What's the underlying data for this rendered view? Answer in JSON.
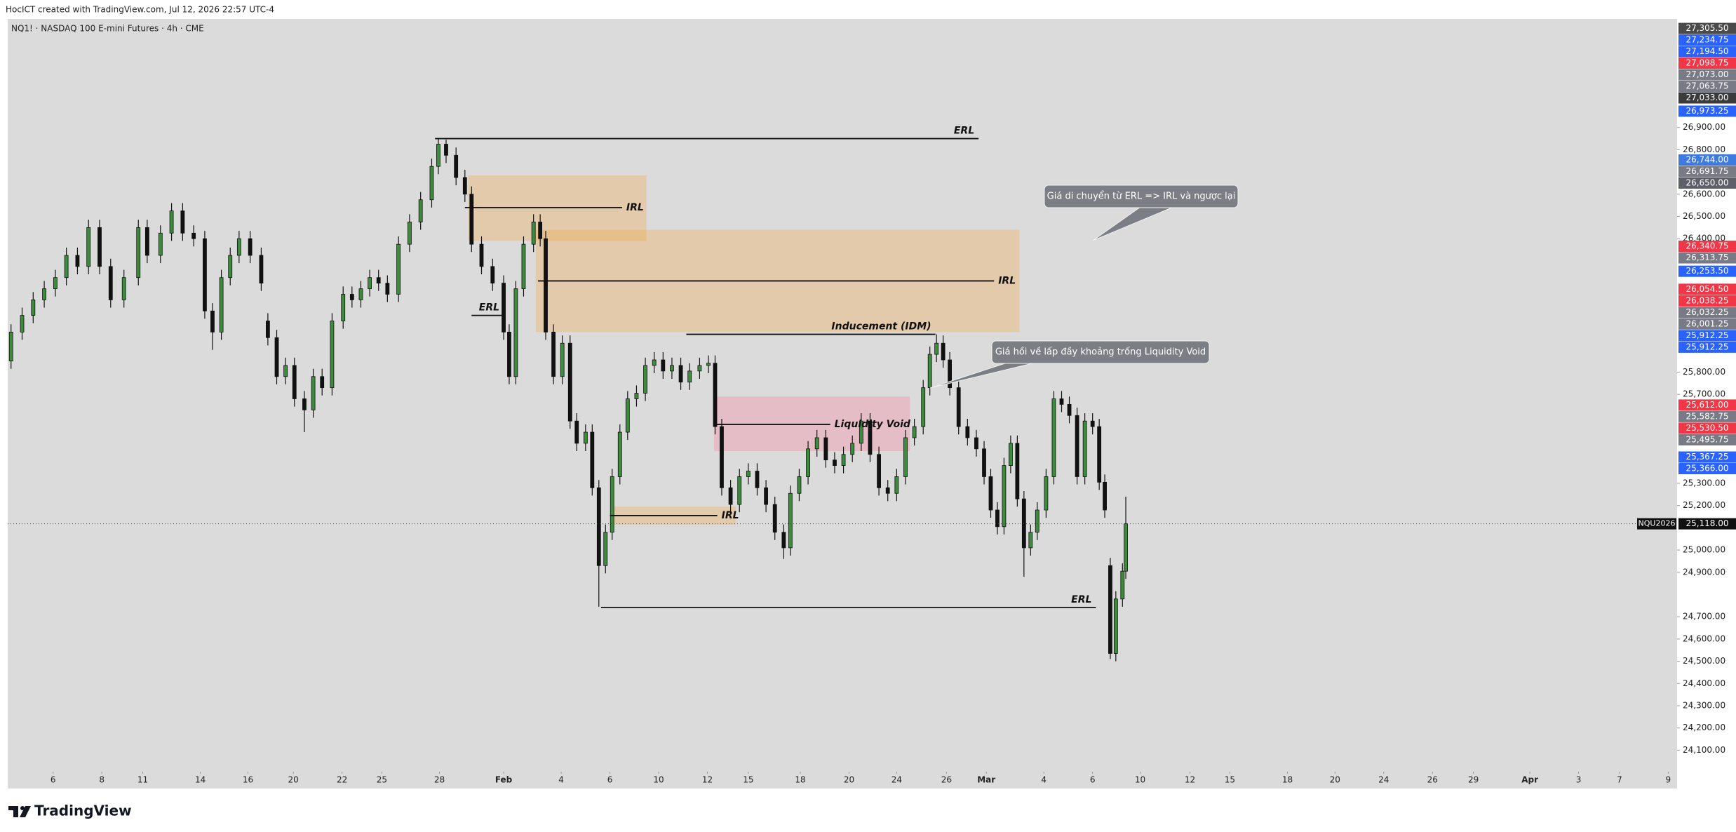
{
  "header": {
    "caption": "HocICT created with TradingView.com, Jul 12, 2026 22:57 UTC-4",
    "symbol_line": "NQ1! · NASDAQ 100 E-mini Futures · 4h · CME"
  },
  "footer": {
    "brand": "TradingView"
  },
  "chart_data": {
    "type": "candlestick",
    "x": [
      0.75,
      3.25,
      5.75,
      8.25,
      10.75,
      13.25,
      15.75,
      18.25,
      20.75,
      23.25,
      26.25,
      29.5,
      31.5,
      34.5,
      37,
      39.5,
      42,
      44.5,
      46.25,
      48.25,
      50.25,
      52.25,
      54.75,
      57.25,
      58.75,
      60.75,
      62.75,
      64.75,
      67,
      69,
      71,
      73.25,
      75.75,
      77.75,
      79.75,
      81.75,
      83.75,
      85.75,
      88.25,
      90.75,
      93.25,
      95.75,
      97.25,
      99,
      101.25,
      103.25,
      104.75,
      107,
      109.5,
      112,
      113.25,
      114.75,
      116.5,
      118.75,
      120.25,
      121.5,
      123.25,
      125.25,
      127,
      128.5,
      130.5,
      132,
      133.5,
      135,
      136.5,
      138.25,
      140,
      142,
      144,
      146,
      148,
      150,
      152,
      154,
      156.25,
      158.25,
      159.75,
      161.25,
      163.25,
      165.25,
      167.25,
      169.25,
      171.25,
      173.25,
      175.25,
      176.75,
      178.75,
      180.75,
      182.75,
      184.75,
      186.75,
      188.75,
      190.75,
      192.75,
      194.75,
      196.75,
      198.75,
      200.75,
      202.75,
      204.75,
      206.75,
      208.25,
      209.75,
      211.25,
      212.75,
      214.75,
      216.75,
      218.75,
      220.5,
      222,
      223.5,
      225,
      226.5,
      228,
      229.5,
      231,
      232.5,
      234.5,
      236.25,
      238,
      239.75,
      241.5,
      243.25,
      245,
      246.5,
      247.75,
      249,
      250.25,
      251.75,
      252.5
    ],
    "open": [
      25850,
      25980,
      26055,
      26125,
      26175,
      26225,
      26325,
      26275,
      26450,
      26275,
      26125,
      26225,
      26450,
      26325,
      26425,
      26525,
      26425,
      26400,
      26075,
      25980,
      26225,
      26325,
      26400,
      26325,
      26030,
      25955,
      25780,
      25830,
      25680,
      25630,
      25780,
      25730,
      26030,
      26150,
      26125,
      26175,
      26225,
      26200,
      26150,
      26375,
      26475,
      26575,
      26725,
      26825,
      26775,
      26675,
      26600,
      26375,
      26275,
      26200,
      25980,
      25780,
      26175,
      26375,
      26475,
      26400,
      25980,
      25780,
      25930,
      25580,
      25480,
      25530,
      25280,
      24930,
      25080,
      25330,
      25530,
      25680,
      25705,
      25830,
      25855,
      25805,
      25830,
      25755,
      25805,
      25830,
      25840,
      25555,
      25280,
      25205,
      25330,
      25355,
      25280,
      25205,
      25080,
      25010,
      25255,
      25330,
      25455,
      25505,
      25405,
      25380,
      25430,
      25480,
      25580,
      25430,
      25280,
      25255,
      25330,
      25505,
      25555,
      25730,
      25880,
      25930,
      25855,
      25730,
      25555,
      25505,
      25455,
      25330,
      25180,
      25105,
      25380,
      25480,
      25230,
      25010,
      25080,
      25180,
      25330,
      25680,
      25655,
      25605,
      25330,
      25580,
      25555,
      25305,
      24930,
      24535,
      24780,
      24905
    ],
    "high": [
      26015,
      26090,
      26160,
      26210,
      26260,
      26360,
      26360,
      26485,
      26485,
      26310,
      26260,
      26485,
      26485,
      26460,
      26560,
      26560,
      26460,
      26435,
      26110,
      26260,
      26360,
      26435,
      26435,
      26360,
      26065,
      25990,
      25865,
      25865,
      25715,
      25815,
      25815,
      26065,
      26185,
      26185,
      26210,
      26260,
      26260,
      26235,
      26410,
      26510,
      26610,
      26760,
      26850,
      26845,
      26810,
      26710,
      26635,
      26410,
      26310,
      26235,
      26015,
      26210,
      26410,
      26510,
      26510,
      26435,
      26015,
      25965,
      25965,
      25615,
      25565,
      25565,
      25315,
      25115,
      25365,
      25565,
      25715,
      25740,
      25865,
      25890,
      25890,
      25865,
      25865,
      25840,
      25865,
      25875,
      25875,
      25590,
      25315,
      25365,
      25390,
      25390,
      25315,
      25240,
      25115,
      25290,
      25365,
      25490,
      25540,
      25540,
      25440,
      25465,
      25515,
      25615,
      25615,
      25465,
      25315,
      25365,
      25540,
      25590,
      25765,
      25915,
      25970,
      25965,
      25890,
      25765,
      25590,
      25540,
      25490,
      25365,
      25215,
      25415,
      25515,
      25515,
      25265,
      25115,
      25215,
      25365,
      25715,
      25715,
      25690,
      25640,
      25615,
      25615,
      25590,
      25340,
      24965,
      24815,
      24940,
      25240
    ],
    "low": [
      25815,
      25945,
      26020,
      26090,
      26140,
      26190,
      26240,
      26240,
      26240,
      26090,
      26090,
      26190,
      26290,
      26290,
      26390,
      26390,
      26365,
      26040,
      25900,
      25945,
      26190,
      26290,
      26290,
      26165,
      25920,
      25745,
      25745,
      25645,
      25530,
      25595,
      25695,
      25695,
      25995,
      26090,
      26090,
      26140,
      26165,
      26115,
      26115,
      26340,
      26440,
      26540,
      26690,
      26740,
      26640,
      26565,
      26340,
      26240,
      26165,
      25945,
      25745,
      25745,
      26140,
      26340,
      26365,
      25945,
      25745,
      25745,
      25545,
      25445,
      25445,
      25245,
      24745,
      24895,
      25045,
      25295,
      25495,
      25645,
      25670,
      25795,
      25770,
      25770,
      25720,
      25720,
      25770,
      25795,
      25520,
      25245,
      25170,
      25170,
      25295,
      25245,
      25170,
      25045,
      24960,
      24975,
      25220,
      25295,
      25420,
      25370,
      25345,
      25345,
      25395,
      25445,
      25395,
      25245,
      25220,
      25220,
      25295,
      25470,
      25520,
      25695,
      25845,
      25820,
      25695,
      25520,
      25470,
      25420,
      25295,
      25145,
      25070,
      25070,
      25345,
      25195,
      24880,
      24975,
      25045,
      25145,
      25295,
      25620,
      25570,
      25295,
      25295,
      25520,
      25270,
      25145,
      24510,
      24500,
      24745,
      24870
    ],
    "close": [
      25980,
      26055,
      26125,
      26175,
      26225,
      26325,
      26275,
      26450,
      26275,
      26125,
      26225,
      26450,
      26325,
      26425,
      26525,
      26425,
      26400,
      26075,
      25980,
      26225,
      26325,
      26400,
      26325,
      26200,
      25955,
      25780,
      25830,
      25680,
      25630,
      25780,
      25730,
      26030,
      26150,
      26125,
      26175,
      26225,
      26200,
      26150,
      26375,
      26475,
      26575,
      26725,
      26825,
      26775,
      26675,
      26600,
      26375,
      26275,
      26200,
      25980,
      25780,
      26175,
      26375,
      26475,
      26400,
      25980,
      25780,
      25930,
      25580,
      25480,
      25530,
      25280,
      24930,
      25080,
      25330,
      25530,
      25680,
      25705,
      25830,
      25855,
      25805,
      25830,
      25755,
      25805,
      25830,
      25840,
      25555,
      25280,
      25205,
      25330,
      25355,
      25280,
      25205,
      25080,
      25010,
      25255,
      25330,
      25455,
      25505,
      25405,
      25380,
      25430,
      25480,
      25580,
      25430,
      25280,
      25255,
      25330,
      25505,
      25555,
      25730,
      25880,
      25930,
      25855,
      25730,
      25555,
      25505,
      25455,
      25330,
      25180,
      25105,
      25380,
      25480,
      25230,
      25010,
      25080,
      25180,
      25330,
      25680,
      25655,
      25605,
      25330,
      25580,
      25555,
      25305,
      25180,
      24535,
      24780,
      24905,
      25118
    ],
    "up_color": "#3d8b3d",
    "down_color": "#111111",
    "xlim": [
      0,
      377
    ],
    "xticks": [
      {
        "value": 10.25,
        "label": "6"
      },
      {
        "value": 21.25,
        "label": "8"
      },
      {
        "value": 30.5,
        "label": "11"
      },
      {
        "value": 43.5,
        "label": "14"
      },
      {
        "value": 54.25,
        "label": "16"
      },
      {
        "value": 64.5,
        "label": "20"
      },
      {
        "value": 75.5,
        "label": "22"
      },
      {
        "value": 84.5,
        "label": "25"
      },
      {
        "value": 97.5,
        "label": "28"
      },
      {
        "value": 112,
        "label": "Feb"
      },
      {
        "value": 125,
        "label": "4"
      },
      {
        "value": 136,
        "label": "6"
      },
      {
        "value": 147,
        "label": "10"
      },
      {
        "value": 158,
        "label": "12"
      },
      {
        "value": 167.25,
        "label": "15"
      },
      {
        "value": 179,
        "label": "18"
      },
      {
        "value": 190,
        "label": "20"
      },
      {
        "value": 200.75,
        "label": "24"
      },
      {
        "value": 212,
        "label": "26"
      },
      {
        "value": 221,
        "label": "Mar"
      },
      {
        "value": 234,
        "label": "4"
      },
      {
        "value": 245,
        "label": "6"
      },
      {
        "value": 255.75,
        "label": "10"
      },
      {
        "value": 267,
        "label": "12"
      },
      {
        "value": 276,
        "label": "15"
      },
      {
        "value": 289,
        "label": "18"
      },
      {
        "value": 299.75,
        "label": "20"
      },
      {
        "value": 310.75,
        "label": "24"
      },
      {
        "value": 321.75,
        "label": "26"
      },
      {
        "value": 331,
        "label": "29"
      },
      {
        "value": 343.75,
        "label": "Apr"
      },
      {
        "value": 354.75,
        "label": "3"
      },
      {
        "value": 364,
        "label": "7"
      },
      {
        "value": 375,
        "label": "9"
      }
    ],
    "ylim": [
      24035,
      27388
    ],
    "yticks": [
      {
        "value": 26900,
        "label": "26,900.00"
      },
      {
        "value": 26800,
        "label": "26,800.00"
      },
      {
        "value": 26600,
        "label": "26,600.00"
      },
      {
        "value": 26500,
        "label": "26,500.00"
      },
      {
        "value": 26400,
        "label": "26,400.00"
      },
      {
        "value": 25800,
        "label": "25,800.00"
      },
      {
        "value": 25700,
        "label": "25,700.00"
      },
      {
        "value": 25300,
        "label": "25,300.00"
      },
      {
        "value": 25200,
        "label": "25,200.00"
      },
      {
        "value": 25000,
        "label": "25,000.00"
      },
      {
        "value": 24900,
        "label": "24,900.00"
      },
      {
        "value": 24700,
        "label": "24,700.00"
      },
      {
        "value": 24600,
        "label": "24,600.00"
      },
      {
        "value": 24500,
        "label": "24,500.00"
      },
      {
        "value": 24400,
        "label": "24,400.00"
      },
      {
        "value": 24300,
        "label": "24,300.00"
      },
      {
        "value": 24200,
        "label": "24,200.00"
      },
      {
        "value": 24100,
        "label": "24,100.00"
      }
    ],
    "grid": false,
    "last_price": {
      "value": 25118,
      "label": "25,118.00",
      "symbol": "NQU2026"
    },
    "price_labels": [
      {
        "value": 27305.5,
        "label": "27,305.50",
        "color": "#4a4a4a"
      },
      {
        "value": 27234.75,
        "label": "27,234.75",
        "color": "#2962ff"
      },
      {
        "value": 27194.5,
        "label": "27,194.50",
        "color": "#2962ff"
      },
      {
        "value": 27098.75,
        "label": "27,098.75",
        "color": "#f23645"
      },
      {
        "value": 27073,
        "label": "27,073.00",
        "color": "#787b86"
      },
      {
        "value": 27063.75,
        "label": "27,063.75",
        "color": "#787b86"
      },
      {
        "value": 27033,
        "label": "27,033.00",
        "color": "#3b3b3b"
      },
      {
        "value": 26973.25,
        "label": "26,973.25",
        "color": "#2962ff"
      },
      {
        "value": 26744,
        "label": "26,744.00",
        "color": "#3d7be0"
      },
      {
        "value": 26691.75,
        "label": "26,691.75",
        "color": "#787b86"
      },
      {
        "value": 26650,
        "label": "26,650.00",
        "color": "#5d6068"
      },
      {
        "value": 26340.75,
        "label": "26,340.75",
        "color": "#f23645"
      },
      {
        "value": 26313.75,
        "label": "26,313.75",
        "color": "#787b86"
      },
      {
        "value": 26253.5,
        "label": "26,253.50",
        "color": "#2962ff"
      },
      {
        "value": 26054.5,
        "label": "26,054.50",
        "color": "#f23645"
      },
      {
        "value": 26038.25,
        "label": "26,038.25",
        "color": "#f23645"
      },
      {
        "value": 26032.25,
        "label": "26,032.25",
        "color": "#787b86"
      },
      {
        "value": 26001.25,
        "label": "26,001.25",
        "color": "#787b86"
      },
      {
        "value": 25912.25,
        "label": "25,912.25",
        "color": "#2962ff"
      },
      {
        "value": 25912.25,
        "label": "25,912.25",
        "color": "#2962ff"
      },
      {
        "value": 25612,
        "label": "25,612.00",
        "color": "#f23645"
      },
      {
        "value": 25582.75,
        "label": "25,582.75",
        "color": "#787b86"
      },
      {
        "value": 25530.5,
        "label": "25,530.50",
        "color": "#f23645"
      },
      {
        "value": 25495.75,
        "label": "25,495.75",
        "color": "#787b86"
      },
      {
        "value": 25367.25,
        "label": "25,367.25",
        "color": "#2962ff"
      },
      {
        "value": 25366,
        "label": "25,366.00",
        "color": "#2962ff"
      }
    ],
    "zones": [
      {
        "x": [
          104,
          144.25
        ],
        "y": [
          26390,
          26685
        ],
        "color": "rgba(242,168,72,0.32)"
      },
      {
        "x": [
          119.25,
          228.5
        ],
        "y": [
          25980,
          26440
        ],
        "color": "rgba(242,168,72,0.32)"
      },
      {
        "x": [
          159.5,
          203.75
        ],
        "y": [
          25445,
          25690
        ],
        "color": "rgba(244,140,165,0.38)"
      },
      {
        "x": [
          136,
          164.5
        ],
        "y": [
          25115,
          25195
        ],
        "color": "rgba(242,168,72,0.32)"
      }
    ],
    "levels": [
      {
        "label": "ERL",
        "x": [
          96.5,
          219.25
        ],
        "value": 26850,
        "label_pos": "above-end"
      },
      {
        "label": "IRL",
        "x": [
          103.25,
          138.75
        ],
        "value": 26540,
        "label_pos": "right"
      },
      {
        "label": "IRL",
        "x": [
          119.75,
          222.75
        ],
        "value": 26210,
        "label_pos": "right"
      },
      {
        "label": "ERL",
        "x": [
          104.75,
          112
        ],
        "value": 26055,
        "label_pos": "above-end"
      },
      {
        "label": "Inducement (IDM)",
        "x": [
          153.25,
          209.5
        ],
        "value": 25970,
        "label_pos": "above-end"
      },
      {
        "label": "Liquidity Void",
        "x": [
          159.5,
          185.75
        ],
        "value": 25565,
        "label_pos": "right"
      },
      {
        "label": "IRL",
        "x": [
          136,
          160.25
        ],
        "value": 25155,
        "label_pos": "right"
      },
      {
        "label": "ERL",
        "x": [
          134,
          245.75
        ],
        "value": 24742,
        "label_pos": "above-end"
      }
    ],
    "callouts": [
      {
        "text": "Giá di chuyển từ ERL => IRL và ngược lại"
      },
      {
        "text": "Giá hồi về lấp đầy khoảng trống Liquidity Void"
      }
    ]
  }
}
